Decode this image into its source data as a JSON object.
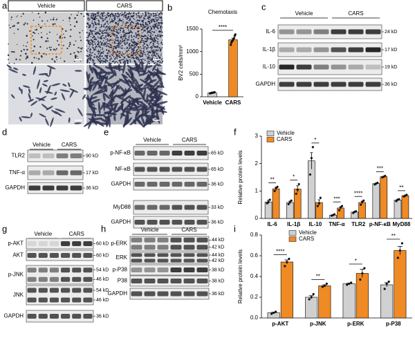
{
  "panel_a": {
    "letter": "a",
    "groups": [
      "Vehicle",
      "CARS"
    ]
  },
  "blots": [
    {
      "letter": "c",
      "groups": [
        "Vehicle",
        "CARS"
      ],
      "rows": [
        {
          "label": "IL-6",
          "kd": [
            "24 kD"
          ]
        },
        {
          "label": "IL-1β",
          "kd": [
            "17 kD"
          ]
        },
        {
          "label": "IL-10",
          "kd": [
            "19 kD"
          ]
        },
        {
          "label": "GAPDH",
          "kd": [
            "36 kD"
          ]
        }
      ]
    },
    {
      "letter": "d",
      "groups": [
        "Vehicle",
        "CARS"
      ],
      "rows": [
        {
          "label": "TLR2",
          "kd": [
            "90 kD"
          ]
        },
        {
          "label": "TNF-α",
          "kd": [
            "17 kD"
          ]
        },
        {
          "label": "GAPDH",
          "kd": [
            "36 kD"
          ]
        }
      ]
    },
    {
      "letter": "e",
      "groups": [
        "Vehicle",
        "CARS"
      ],
      "rows": [
        {
          "label": "p-NF-κB",
          "kd": [
            "65 kD"
          ]
        },
        {
          "label": "NF-κB",
          "kd": [
            "65 kD"
          ]
        },
        {
          "label": "GAPDH",
          "kd": [
            "36 kD"
          ]
        },
        {
          "label": "MyD88",
          "kd": [
            "33 kD"
          ]
        },
        {
          "label": "GAPDH",
          "kd": [
            "36 kD"
          ]
        }
      ]
    },
    {
      "letter": "g",
      "groups": [
        "Vehicle",
        "CARS"
      ],
      "rows": [
        {
          "label": "p-AKT",
          "kd": [
            "60 kD"
          ]
        },
        {
          "label": "AKT",
          "kd": [
            "60 kD"
          ]
        },
        {
          "label": "p-JNK",
          "kd": [
            "54 kD",
            "46 kD"
          ]
        },
        {
          "label": "JNK",
          "kd": [
            "54 kD",
            "46 kD"
          ]
        },
        {
          "label": "GAPDH",
          "kd": [
            "36 kD"
          ]
        }
      ]
    },
    {
      "letter": "h",
      "groups": [
        "Vehicle",
        "CARS"
      ],
      "rows": [
        {
          "label": "p-ERK",
          "kd": [
            "44 kD",
            "42 kD"
          ]
        },
        {
          "label": "ERK",
          "kd": [
            "44 kD",
            "42 kD"
          ]
        },
        {
          "label": "p-P38",
          "kd": [
            "38 kD"
          ]
        },
        {
          "label": "P38",
          "kd": [
            "38 kD"
          ]
        },
        {
          "label": "GAPDH",
          "kd": [
            "36 kD"
          ]
        }
      ]
    }
  ],
  "chart_data": [
    {
      "type": "bar",
      "letter": "b",
      "title": "Chemotaxis",
      "y_label": "BV2 cells/mm²",
      "categories": [
        "Vehicle",
        "CARS"
      ],
      "values": [
        88,
        1262
      ],
      "errors": [
        10,
        35
      ],
      "colors": [
        "#d0d0d0",
        "#f08a24"
      ],
      "points": [
        [
          75,
          80,
          85,
          88,
          90,
          95,
          95,
          100
        ],
        [
          1150,
          1200,
          1230,
          1250,
          1280,
          1300,
          1350,
          1380
        ]
      ],
      "annotation": "****",
      "ylim": [
        0,
        1500
      ],
      "yticks": [
        0,
        500,
        1000,
        1500
      ]
    },
    {
      "type": "bar",
      "letter": "f",
      "y_label": "Relative protein levels",
      "categories": [
        "IL-6",
        "IL-1β",
        "IL-10",
        "TNF-α",
        "TLR2",
        "p-NF-κB",
        "MyD88"
      ],
      "series": [
        {
          "name": "Vehicle",
          "color": "#d0d0d0",
          "values": [
            0.6,
            0.58,
            2.1,
            0.12,
            0.23,
            1.27,
            0.67
          ],
          "errors": [
            0.06,
            0.05,
            0.3,
            0.02,
            0.02,
            0.02,
            0.03
          ],
          "points": [
            [
              0.55,
              0.6,
              0.68
            ],
            [
              0.52,
              0.6,
              0.65
            ],
            [
              1.6,
              2.2,
              2.6
            ],
            [
              0.1,
              0.12,
              0.15
            ],
            [
              0.2,
              0.24,
              0.26
            ],
            [
              1.24,
              1.27,
              1.3
            ],
            [
              0.63,
              0.68,
              0.7
            ]
          ]
        },
        {
          "name": "CARS",
          "color": "#f08a24",
          "values": [
            1.08,
            1.07,
            0.58,
            0.38,
            0.58,
            1.52,
            0.83
          ],
          "errors": [
            0.06,
            0.12,
            0.1,
            0.05,
            0.05,
            0.02,
            0.02
          ],
          "points": [
            [
              1.0,
              1.1,
              1.15
            ],
            [
              0.9,
              1.05,
              1.25
            ],
            [
              0.45,
              0.55,
              0.75
            ],
            [
              0.3,
              0.4,
              0.45
            ],
            [
              0.5,
              0.6,
              0.65
            ],
            [
              1.5,
              1.52,
              1.55
            ],
            [
              0.8,
              0.83,
              0.86
            ]
          ]
        }
      ],
      "annotations": [
        "**",
        "*",
        "*",
        "***",
        "****",
        "***",
        "**"
      ],
      "ylim": [
        0,
        3
      ],
      "yticks": [
        0,
        1,
        2,
        3
      ],
      "legend": "top-left"
    },
    {
      "type": "bar",
      "letter": "i",
      "y_label": "Relative protein levels",
      "categories": [
        "p-AKT",
        "p-JNK",
        "p-ERK",
        "p-P38"
      ],
      "series": [
        {
          "name": "Vehicle",
          "color": "#d0d0d0",
          "values": [
            0.05,
            0.2,
            0.33,
            0.32
          ],
          "errors": [
            0.005,
            0.015,
            0.005,
            0.02
          ],
          "points": [
            [
              0.04,
              0.05,
              0.06
            ],
            [
              0.18,
              0.2,
              0.23
            ],
            [
              0.32,
              0.33,
              0.34
            ],
            [
              0.28,
              0.33,
              0.35
            ]
          ]
        },
        {
          "name": "CARS",
          "color": "#f08a24",
          "values": [
            0.54,
            0.31,
            0.43,
            0.65
          ],
          "errors": [
            0.02,
            0.01,
            0.04,
            0.04
          ],
          "points": [
            [
              0.5,
              0.54,
              0.57
            ],
            [
              0.3,
              0.31,
              0.33
            ],
            [
              0.37,
              0.43,
              0.48
            ],
            [
              0.58,
              0.65,
              0.72
            ]
          ]
        }
      ],
      "annotations": [
        "****",
        "**",
        "*",
        "**"
      ],
      "ylim": [
        0,
        0.8
      ],
      "yticks": [
        {
          "value": 0,
          "label": "0.0"
        },
        0.2,
        0.4,
        0.6,
        0.8
      ],
      "legend": "top-center"
    }
  ]
}
